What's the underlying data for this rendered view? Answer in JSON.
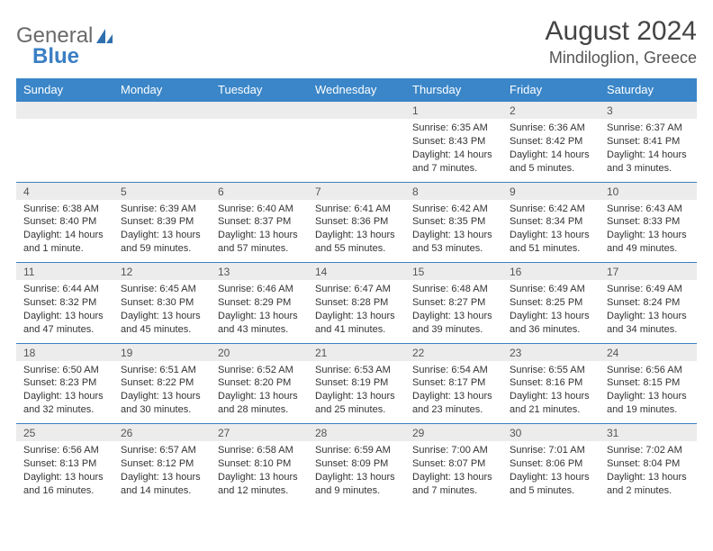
{
  "logo": {
    "text1": "General",
    "text2": "Blue"
  },
  "title": "August 2024",
  "location": "Mindiloglion, Greece",
  "colors": {
    "header_bg": "#3a86c8",
    "header_fg": "#ffffff",
    "daynum_bg": "#ececec",
    "border_top": "#3a7fc4",
    "text": "#333333"
  },
  "day_headers": [
    "Sunday",
    "Monday",
    "Tuesday",
    "Wednesday",
    "Thursday",
    "Friday",
    "Saturday"
  ],
  "weeks": [
    {
      "nums": [
        "",
        "",
        "",
        "",
        "1",
        "2",
        "3"
      ],
      "cells": [
        null,
        null,
        null,
        null,
        {
          "sunrise": "Sunrise: 6:35 AM",
          "sunset": "Sunset: 8:43 PM",
          "day1": "Daylight: 14 hours",
          "day2": "and 7 minutes."
        },
        {
          "sunrise": "Sunrise: 6:36 AM",
          "sunset": "Sunset: 8:42 PM",
          "day1": "Daylight: 14 hours",
          "day2": "and 5 minutes."
        },
        {
          "sunrise": "Sunrise: 6:37 AM",
          "sunset": "Sunset: 8:41 PM",
          "day1": "Daylight: 14 hours",
          "day2": "and 3 minutes."
        }
      ]
    },
    {
      "nums": [
        "4",
        "5",
        "6",
        "7",
        "8",
        "9",
        "10"
      ],
      "cells": [
        {
          "sunrise": "Sunrise: 6:38 AM",
          "sunset": "Sunset: 8:40 PM",
          "day1": "Daylight: 14 hours",
          "day2": "and 1 minute."
        },
        {
          "sunrise": "Sunrise: 6:39 AM",
          "sunset": "Sunset: 8:39 PM",
          "day1": "Daylight: 13 hours",
          "day2": "and 59 minutes."
        },
        {
          "sunrise": "Sunrise: 6:40 AM",
          "sunset": "Sunset: 8:37 PM",
          "day1": "Daylight: 13 hours",
          "day2": "and 57 minutes."
        },
        {
          "sunrise": "Sunrise: 6:41 AM",
          "sunset": "Sunset: 8:36 PM",
          "day1": "Daylight: 13 hours",
          "day2": "and 55 minutes."
        },
        {
          "sunrise": "Sunrise: 6:42 AM",
          "sunset": "Sunset: 8:35 PM",
          "day1": "Daylight: 13 hours",
          "day2": "and 53 minutes."
        },
        {
          "sunrise": "Sunrise: 6:42 AM",
          "sunset": "Sunset: 8:34 PM",
          "day1": "Daylight: 13 hours",
          "day2": "and 51 minutes."
        },
        {
          "sunrise": "Sunrise: 6:43 AM",
          "sunset": "Sunset: 8:33 PM",
          "day1": "Daylight: 13 hours",
          "day2": "and 49 minutes."
        }
      ]
    },
    {
      "nums": [
        "11",
        "12",
        "13",
        "14",
        "15",
        "16",
        "17"
      ],
      "cells": [
        {
          "sunrise": "Sunrise: 6:44 AM",
          "sunset": "Sunset: 8:32 PM",
          "day1": "Daylight: 13 hours",
          "day2": "and 47 minutes."
        },
        {
          "sunrise": "Sunrise: 6:45 AM",
          "sunset": "Sunset: 8:30 PM",
          "day1": "Daylight: 13 hours",
          "day2": "and 45 minutes."
        },
        {
          "sunrise": "Sunrise: 6:46 AM",
          "sunset": "Sunset: 8:29 PM",
          "day1": "Daylight: 13 hours",
          "day2": "and 43 minutes."
        },
        {
          "sunrise": "Sunrise: 6:47 AM",
          "sunset": "Sunset: 8:28 PM",
          "day1": "Daylight: 13 hours",
          "day2": "and 41 minutes."
        },
        {
          "sunrise": "Sunrise: 6:48 AM",
          "sunset": "Sunset: 8:27 PM",
          "day1": "Daylight: 13 hours",
          "day2": "and 39 minutes."
        },
        {
          "sunrise": "Sunrise: 6:49 AM",
          "sunset": "Sunset: 8:25 PM",
          "day1": "Daylight: 13 hours",
          "day2": "and 36 minutes."
        },
        {
          "sunrise": "Sunrise: 6:49 AM",
          "sunset": "Sunset: 8:24 PM",
          "day1": "Daylight: 13 hours",
          "day2": "and 34 minutes."
        }
      ]
    },
    {
      "nums": [
        "18",
        "19",
        "20",
        "21",
        "22",
        "23",
        "24"
      ],
      "cells": [
        {
          "sunrise": "Sunrise: 6:50 AM",
          "sunset": "Sunset: 8:23 PM",
          "day1": "Daylight: 13 hours",
          "day2": "and 32 minutes."
        },
        {
          "sunrise": "Sunrise: 6:51 AM",
          "sunset": "Sunset: 8:22 PM",
          "day1": "Daylight: 13 hours",
          "day2": "and 30 minutes."
        },
        {
          "sunrise": "Sunrise: 6:52 AM",
          "sunset": "Sunset: 8:20 PM",
          "day1": "Daylight: 13 hours",
          "day2": "and 28 minutes."
        },
        {
          "sunrise": "Sunrise: 6:53 AM",
          "sunset": "Sunset: 8:19 PM",
          "day1": "Daylight: 13 hours",
          "day2": "and 25 minutes."
        },
        {
          "sunrise": "Sunrise: 6:54 AM",
          "sunset": "Sunset: 8:17 PM",
          "day1": "Daylight: 13 hours",
          "day2": "and 23 minutes."
        },
        {
          "sunrise": "Sunrise: 6:55 AM",
          "sunset": "Sunset: 8:16 PM",
          "day1": "Daylight: 13 hours",
          "day2": "and 21 minutes."
        },
        {
          "sunrise": "Sunrise: 6:56 AM",
          "sunset": "Sunset: 8:15 PM",
          "day1": "Daylight: 13 hours",
          "day2": "and 19 minutes."
        }
      ]
    },
    {
      "nums": [
        "25",
        "26",
        "27",
        "28",
        "29",
        "30",
        "31"
      ],
      "cells": [
        {
          "sunrise": "Sunrise: 6:56 AM",
          "sunset": "Sunset: 8:13 PM",
          "day1": "Daylight: 13 hours",
          "day2": "and 16 minutes."
        },
        {
          "sunrise": "Sunrise: 6:57 AM",
          "sunset": "Sunset: 8:12 PM",
          "day1": "Daylight: 13 hours",
          "day2": "and 14 minutes."
        },
        {
          "sunrise": "Sunrise: 6:58 AM",
          "sunset": "Sunset: 8:10 PM",
          "day1": "Daylight: 13 hours",
          "day2": "and 12 minutes."
        },
        {
          "sunrise": "Sunrise: 6:59 AM",
          "sunset": "Sunset: 8:09 PM",
          "day1": "Daylight: 13 hours",
          "day2": "and 9 minutes."
        },
        {
          "sunrise": "Sunrise: 7:00 AM",
          "sunset": "Sunset: 8:07 PM",
          "day1": "Daylight: 13 hours",
          "day2": "and 7 minutes."
        },
        {
          "sunrise": "Sunrise: 7:01 AM",
          "sunset": "Sunset: 8:06 PM",
          "day1": "Daylight: 13 hours",
          "day2": "and 5 minutes."
        },
        {
          "sunrise": "Sunrise: 7:02 AM",
          "sunset": "Sunset: 8:04 PM",
          "day1": "Daylight: 13 hours",
          "day2": "and 2 minutes."
        }
      ]
    }
  ]
}
